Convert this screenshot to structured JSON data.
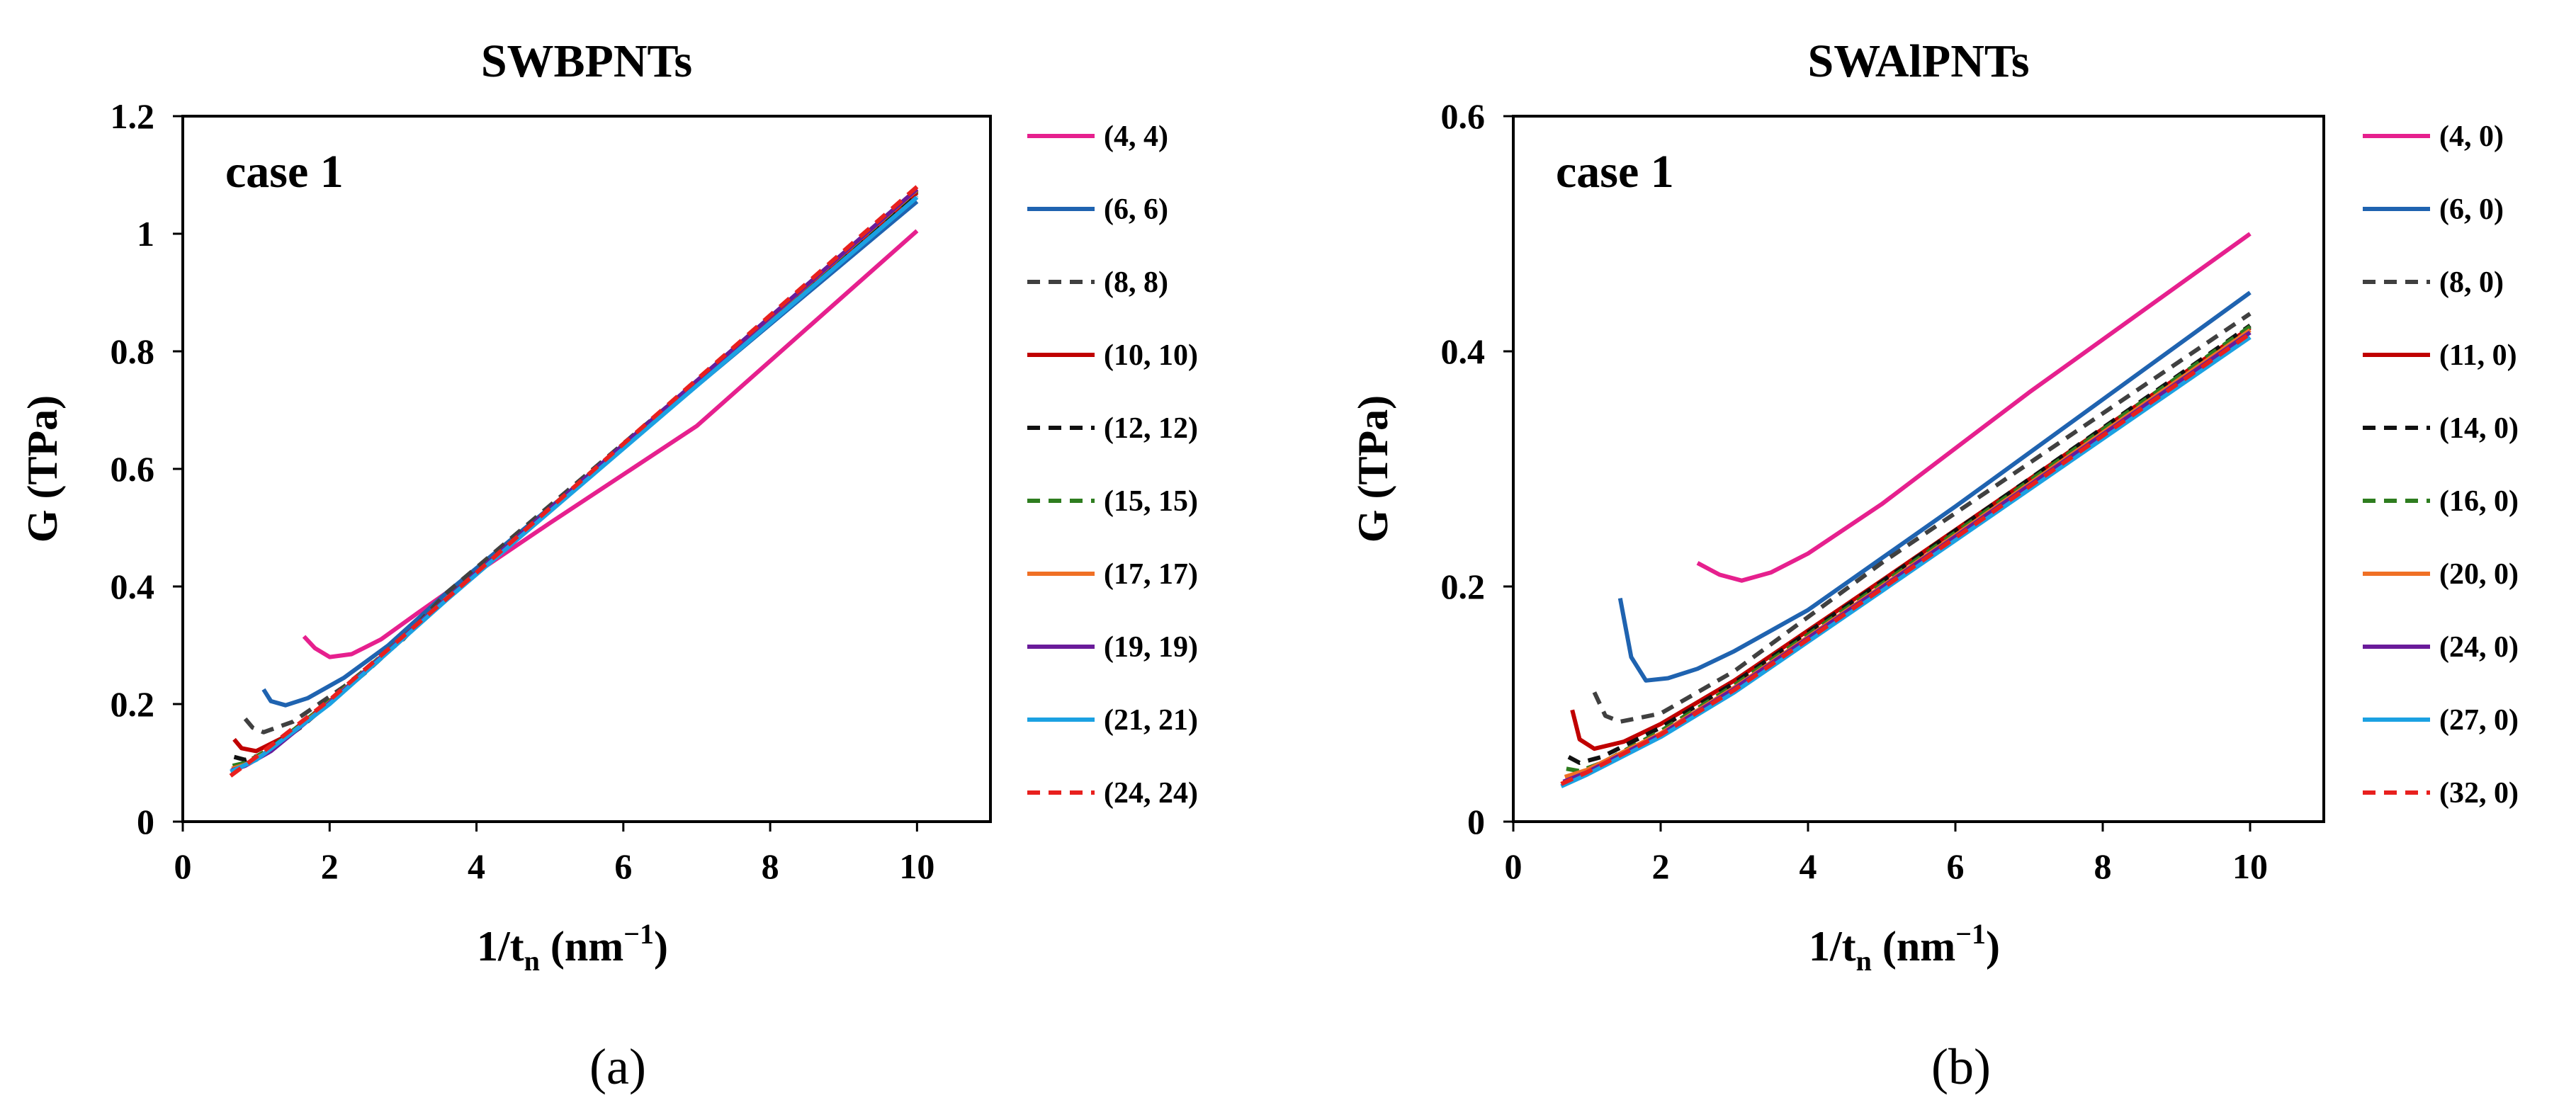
{
  "chart_data": [
    {
      "type": "line",
      "title": "SWBPNTs",
      "annotation": "case 1",
      "panel_label": "(a)",
      "xlabel": "1/t",
      "xlabel_sub": "n",
      "xlabel_unit": " (nm",
      "xlabel_sup": "−1",
      "xlabel_close": ")",
      "ylabel": "G (TPa)",
      "xlim": [
        0,
        11
      ],
      "ylim": [
        0,
        1.2
      ],
      "xticks": [
        0,
        2,
        4,
        6,
        8,
        10
      ],
      "xtick_labels": [
        "0",
        "2",
        "4",
        "6",
        "8",
        "10"
      ],
      "yticks": [
        0,
        0.2,
        0.4,
        0.6,
        0.8,
        1.0,
        1.2
      ],
      "ytick_labels": [
        "0",
        "0.2",
        "0.4",
        "0.6",
        "0.8",
        "1",
        "1.2"
      ],
      "legend_position": "right",
      "series": [
        {
          "name": "(4, 4)",
          "color": "#e6208e",
          "dash": "solid",
          "points": [
            [
              1.65,
              0.315
            ],
            [
              1.8,
              0.295
            ],
            [
              2.0,
              0.28
            ],
            [
              2.3,
              0.285
            ],
            [
              2.7,
              0.31
            ],
            [
              3.2,
              0.355
            ],
            [
              3.6,
              0.39
            ],
            [
              5,
              0.508
            ],
            [
              7,
              0.673
            ],
            [
              10,
              1.005
            ]
          ]
        },
        {
          "name": "(6, 6)",
          "color": "#1f63b0",
          "dash": "solid",
          "points": [
            [
              1.1,
              0.225
            ],
            [
              1.2,
              0.205
            ],
            [
              1.4,
              0.198
            ],
            [
              1.7,
              0.21
            ],
            [
              2.2,
              0.245
            ],
            [
              2.8,
              0.3
            ],
            [
              3.6,
              0.39
            ],
            [
              6,
              0.637
            ],
            [
              10,
              1.055
            ]
          ]
        },
        {
          "name": "(8, 8)",
          "color": "#404040",
          "dash": "dash",
          "points": [
            [
              0.85,
              0.175
            ],
            [
              0.95,
              0.16
            ],
            [
              1.1,
              0.152
            ],
            [
              1.5,
              0.17
            ],
            [
              2.2,
              0.23
            ],
            [
              3.0,
              0.31
            ],
            [
              3.6,
              0.39
            ],
            [
              10,
              1.065
            ]
          ]
        },
        {
          "name": "(10, 10)",
          "color": "#c00000",
          "dash": "solid",
          "points": [
            [
              0.7,
              0.14
            ],
            [
              0.8,
              0.125
            ],
            [
              1.0,
              0.12
            ],
            [
              1.4,
              0.145
            ],
            [
              2.2,
              0.225
            ],
            [
              3.6,
              0.38
            ],
            [
              10,
              1.07
            ]
          ]
        },
        {
          "name": "(12, 12)",
          "color": "#111111",
          "dash": "dash",
          "points": [
            [
              0.7,
              0.11
            ],
            [
              0.85,
              0.105
            ],
            [
              1.1,
              0.115
            ],
            [
              1.6,
              0.16
            ],
            [
              2.5,
              0.255
            ],
            [
              3.6,
              0.38
            ],
            [
              10,
              1.072
            ]
          ]
        },
        {
          "name": "(15, 15)",
          "color": "#2e7d1f",
          "dash": "dash",
          "points": [
            [
              0.68,
              0.095
            ],
            [
              0.85,
              0.1
            ],
            [
              1.2,
              0.125
            ],
            [
              2.0,
              0.205
            ],
            [
              3.6,
              0.38
            ],
            [
              10,
              1.074
            ]
          ]
        },
        {
          "name": "(17, 17)",
          "color": "#f07025",
          "dash": "solid",
          "points": [
            [
              0.67,
              0.09
            ],
            [
              0.85,
              0.097
            ],
            [
              1.2,
              0.122
            ],
            [
              2.0,
              0.203
            ],
            [
              3.6,
              0.38
            ],
            [
              10,
              1.075
            ]
          ]
        },
        {
          "name": "(19, 19)",
          "color": "#6a1b9a",
          "dash": "solid",
          "points": [
            [
              0.66,
              0.087
            ],
            [
              0.85,
              0.095
            ],
            [
              1.2,
              0.12
            ],
            [
              2.0,
              0.202
            ],
            [
              3.6,
              0.38
            ],
            [
              10,
              1.076
            ]
          ]
        },
        {
          "name": "(21, 21)",
          "color": "#1ba1e2",
          "dash": "solid",
          "points": [
            [
              0.65,
              0.085
            ],
            [
              1.0,
              0.105
            ],
            [
              2.0,
              0.2
            ],
            [
              3.6,
              0.378
            ],
            [
              10,
              1.062
            ]
          ]
        },
        {
          "name": "(24, 24)",
          "color": "#e8201e",
          "dash": "dash",
          "points": [
            [
              0.65,
              0.078
            ],
            [
              1.0,
              0.11
            ],
            [
              2.0,
              0.207
            ],
            [
              3.6,
              0.38
            ],
            [
              10,
              1.08
            ]
          ]
        }
      ]
    },
    {
      "type": "line",
      "title": "SWAlPNTs",
      "annotation": "case 1",
      "panel_label": "(b)",
      "xlabel": "1/t",
      "xlabel_sub": "n",
      "xlabel_unit": " (nm",
      "xlabel_sup": "−1",
      "xlabel_close": ")",
      "ylabel": "G (TPa)",
      "xlim": [
        0,
        11
      ],
      "ylim": [
        0,
        0.6
      ],
      "xticks": [
        0,
        2,
        4,
        6,
        8,
        10
      ],
      "xtick_labels": [
        "0",
        "2",
        "4",
        "6",
        "8",
        "10"
      ],
      "yticks": [
        0,
        0.2,
        0.4,
        0.6
      ],
      "ytick_labels": [
        "0",
        "0.2",
        "0.4",
        "0.6"
      ],
      "legend_position": "right",
      "series": [
        {
          "name": "(4, 0)",
          "color": "#e6208e",
          "dash": "solid",
          "points": [
            [
              2.5,
              0.22
            ],
            [
              2.8,
              0.21
            ],
            [
              3.1,
              0.205
            ],
            [
              3.5,
              0.212
            ],
            [
              4.0,
              0.228
            ],
            [
              5,
              0.27
            ],
            [
              7,
              0.365
            ],
            [
              10,
              0.5
            ]
          ]
        },
        {
          "name": "(6, 0)",
          "color": "#1f63b0",
          "dash": "solid",
          "points": [
            [
              1.45,
              0.19
            ],
            [
              1.6,
              0.14
            ],
            [
              1.8,
              0.12
            ],
            [
              2.1,
              0.122
            ],
            [
              2.5,
              0.13
            ],
            [
              3,
              0.145
            ],
            [
              4,
              0.18
            ],
            [
              6,
              0.268
            ],
            [
              10,
              0.45
            ]
          ]
        },
        {
          "name": "(8, 0)",
          "color": "#404040",
          "dash": "dash",
          "points": [
            [
              1.1,
              0.11
            ],
            [
              1.25,
              0.09
            ],
            [
              1.45,
              0.085
            ],
            [
              2,
              0.092
            ],
            [
              3,
              0.128
            ],
            [
              5,
              0.22
            ],
            [
              10,
              0.432
            ]
          ]
        },
        {
          "name": "(11, 0)",
          "color": "#c00000",
          "dash": "solid",
          "points": [
            [
              0.8,
              0.095
            ],
            [
              0.9,
              0.07
            ],
            [
              1.1,
              0.062
            ],
            [
              1.5,
              0.068
            ],
            [
              2,
              0.083
            ],
            [
              3,
              0.12
            ],
            [
              5,
              0.205
            ],
            [
              10,
              0.42
            ]
          ]
        },
        {
          "name": "(14, 0)",
          "color": "#111111",
          "dash": "dash",
          "points": [
            [
              0.75,
              0.055
            ],
            [
              0.9,
              0.05
            ],
            [
              1.2,
              0.055
            ],
            [
              2,
              0.08
            ],
            [
              3,
              0.118
            ],
            [
              5,
              0.204
            ],
            [
              10,
              0.422
            ]
          ]
        },
        {
          "name": "(16, 0)",
          "color": "#2e7d1f",
          "dash": "dash",
          "points": [
            [
              0.72,
              0.045
            ],
            [
              0.9,
              0.043
            ],
            [
              1.2,
              0.05
            ],
            [
              2,
              0.077
            ],
            [
              3,
              0.116
            ],
            [
              5,
              0.202
            ],
            [
              10,
              0.421
            ]
          ]
        },
        {
          "name": "(20, 0)",
          "color": "#f07025",
          "dash": "solid",
          "points": [
            [
              0.7,
              0.038
            ],
            [
              1.0,
              0.044
            ],
            [
              2,
              0.075
            ],
            [
              3,
              0.114
            ],
            [
              5,
              0.2
            ],
            [
              10,
              0.418
            ]
          ]
        },
        {
          "name": "(24, 0)",
          "color": "#6a1b9a",
          "dash": "solid",
          "points": [
            [
              0.68,
              0.034
            ],
            [
              1.0,
              0.042
            ],
            [
              2,
              0.074
            ],
            [
              3,
              0.113
            ],
            [
              5,
              0.199
            ],
            [
              10,
              0.416
            ]
          ]
        },
        {
          "name": "(27, 0)",
          "color": "#1ba1e2",
          "dash": "solid",
          "points": [
            [
              0.65,
              0.03
            ],
            [
              1.0,
              0.04
            ],
            [
              2,
              0.072
            ],
            [
              3,
              0.11
            ],
            [
              5,
              0.196
            ],
            [
              10,
              0.412
            ]
          ]
        },
        {
          "name": "(32, 0)",
          "color": "#e8201e",
          "dash": "dash",
          "points": [
            [
              0.65,
              0.032
            ],
            [
              1.0,
              0.042
            ],
            [
              2,
              0.074
            ],
            [
              3,
              0.112
            ],
            [
              5,
              0.198
            ],
            [
              10,
              0.415
            ]
          ]
        }
      ]
    }
  ]
}
